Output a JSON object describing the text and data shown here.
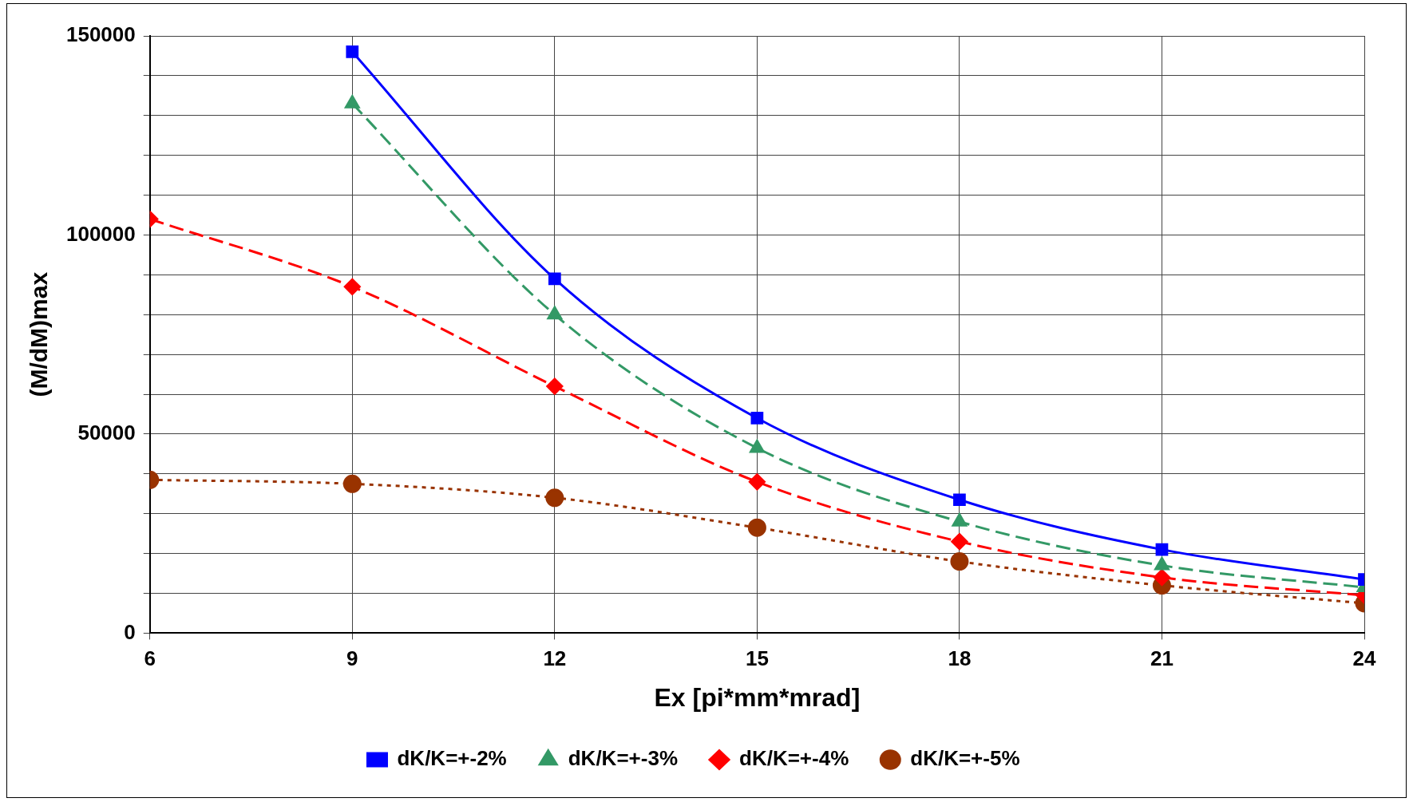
{
  "chart_data": {
    "type": "line",
    "xlabel": "Ex [pi*mm*mrad]",
    "ylabel": "(M/dM)max",
    "x": [
      6,
      9,
      12,
      15,
      18,
      21,
      24
    ],
    "series": [
      {
        "name": "dK/K=+-2%",
        "color": "#0000ff",
        "marker": "square",
        "line_style": "solid",
        "values": [
          null,
          146000,
          89000,
          54000,
          33500,
          21000,
          13500
        ]
      },
      {
        "name": "dK/K=+-3%",
        "color": "#339966",
        "marker": "triangle",
        "line_style": "dashed",
        "values": [
          null,
          133000,
          80000,
          46500,
          28000,
          17000,
          11500
        ]
      },
      {
        "name": "dK/K=+-4%",
        "color": "#ff0000",
        "marker": "diamond",
        "line_style": "dashed",
        "values": [
          104000,
          87000,
          62000,
          38000,
          23000,
          14000,
          9500
        ]
      },
      {
        "name": "dK/K=+-5%",
        "color": "#993300",
        "marker": "circle",
        "line_style": "dotted",
        "values": [
          38500,
          37500,
          34000,
          26500,
          18000,
          12000,
          7500
        ]
      }
    ],
    "xlim": [
      6,
      24
    ],
    "xticks": [
      6,
      9,
      12,
      15,
      18,
      21,
      24
    ],
    "ylim": [
      0,
      150000
    ],
    "yticks": [
      0,
      {
        "value": 10000,
        "label": null
      },
      {
        "value": 20000,
        "label": null
      },
      {
        "value": 30000,
        "label": null
      },
      {
        "value": 40000,
        "label": null
      },
      50000,
      {
        "value": 60000,
        "label": null
      },
      {
        "value": 70000,
        "label": null
      },
      {
        "value": 80000,
        "label": null
      },
      {
        "value": 90000,
        "label": null
      },
      100000,
      {
        "value": 110000,
        "label": null
      },
      {
        "value": 120000,
        "label": null
      },
      {
        "value": 130000,
        "label": null
      },
      {
        "value": 140000,
        "label": null
      },
      150000
    ],
    "grid": true,
    "legend": "bottom"
  }
}
